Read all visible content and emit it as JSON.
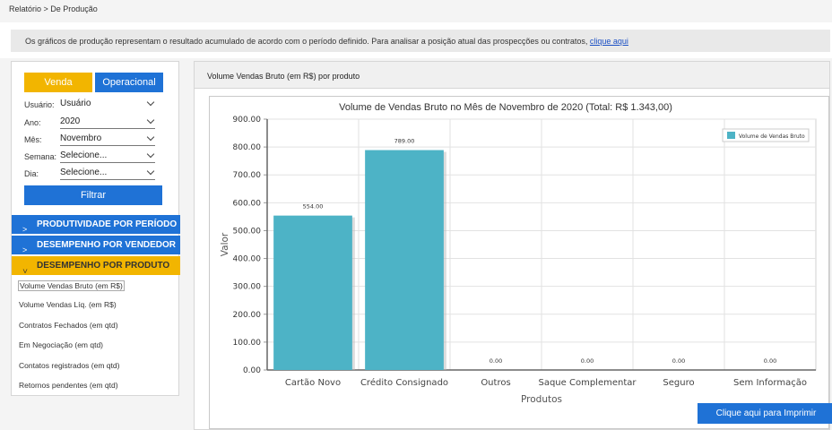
{
  "breadcrumb": "Relatório > De Produção",
  "info": {
    "text": "Os gráficos de produção representam o resultado acumulado de acordo com o período definido. Para analisar a posição atual das prospecções ou contratos, ",
    "link": "clique aqui"
  },
  "tabs": {
    "venda": "Venda",
    "operacional": "Operacional"
  },
  "filters": {
    "usuario": {
      "label": "Usuário:",
      "value": "Usuário"
    },
    "ano": {
      "label": "Ano:",
      "value": "2020"
    },
    "mes": {
      "label": "Mês:",
      "value": "Novembro"
    },
    "semana": {
      "label": "Semana:",
      "value": "Selecione..."
    },
    "dia": {
      "label": "Dia:",
      "value": "Selecione..."
    }
  },
  "filter_button": "Filtrar",
  "accordions": {
    "produtividade": "PRODUTIVIDADE POR PERÍODO",
    "vendedor": "DESEMPENHO POR VENDEDOR",
    "produto": "DESEMPENHO POR PRODUTO"
  },
  "menu_items": [
    "Volume Vendas Bruto (em R$)",
    "Volume Vendas Líq. (em R$)",
    "Contratos Fechados (em qtd)",
    "Em Negociação (em qtd)",
    "Contatos registrados (em qtd)",
    "Retornos pendentes (em qtd)"
  ],
  "panel_title": "Volume Vendas Bruto (em R$) por produto",
  "print_button": "Clique aqui para Imprimir",
  "chart_data": {
    "type": "bar",
    "title": "Volume de Vendas Bruto no Mês de Novembro de 2020 (Total: R$ 1.343,00)",
    "xlabel": "Produtos",
    "ylabel": "Valor",
    "categories": [
      "Cartão Novo",
      "Crédito Consignado",
      "Outros",
      "Saque Complementar",
      "Seguro",
      "Sem Informação"
    ],
    "series": [
      {
        "name": "Volume de Vendas Bruto",
        "values": [
          554.0,
          789.0,
          0.0,
          0.0,
          0.0,
          0.0
        ]
      }
    ],
    "data_labels": [
      "554.00",
      "789.00",
      "0.00",
      "0.00",
      "0.00",
      "0.00"
    ],
    "yticks": [
      "0.00",
      "100.00",
      "200.00",
      "300.00",
      "400.00",
      "500.00",
      "600.00",
      "700.00",
      "800.00",
      "900.00"
    ],
    "ylim": [
      0,
      900
    ],
    "grid": true,
    "legend": "top-right",
    "bar_color": "#4db3c6"
  }
}
